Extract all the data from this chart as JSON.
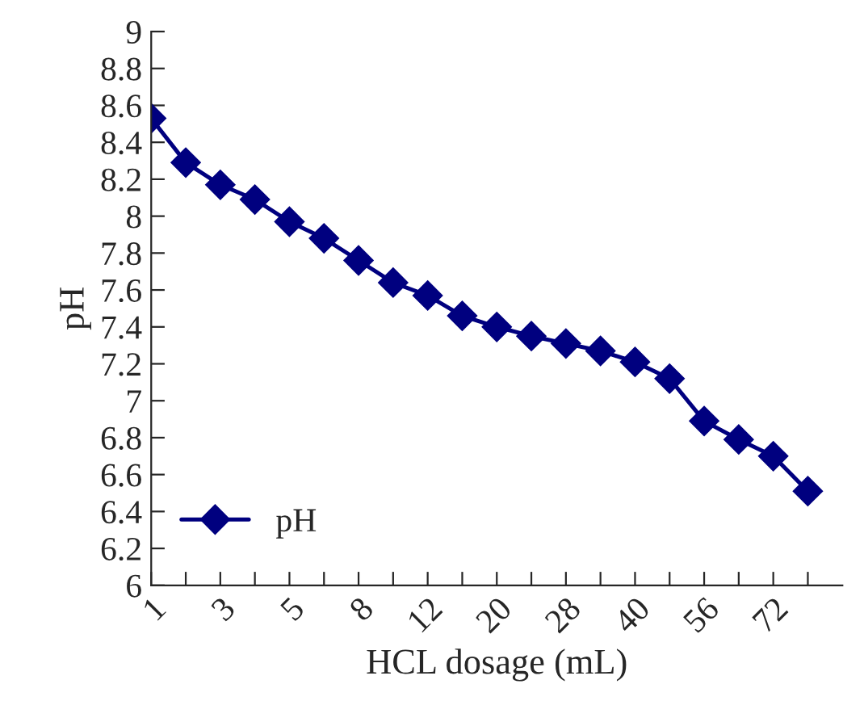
{
  "chart_data": {
    "type": "line",
    "xlabel": "HCL dosage (mL)",
    "ylabel": "pH",
    "categories": [
      "1",
      null,
      "3",
      null,
      "5",
      null,
      "8",
      null,
      "12",
      null,
      "20",
      null,
      "28",
      null,
      "40",
      null,
      "56",
      null,
      "72",
      null
    ],
    "series": [
      {
        "name": "pH",
        "color": "#00007f",
        "values": [
          8.53,
          8.29,
          8.17,
          8.09,
          7.97,
          7.88,
          7.76,
          7.64,
          7.57,
          7.46,
          7.4,
          7.35,
          7.31,
          7.27,
          7.21,
          7.12,
          6.89,
          6.79,
          6.7,
          6.51
        ]
      }
    ],
    "ylim": [
      6,
      9
    ],
    "yticks": [
      6,
      6.2,
      6.4,
      6.6,
      6.8,
      7,
      7.2,
      7.4,
      7.6,
      7.8,
      8,
      8.2,
      8.4,
      8.6,
      8.8,
      9
    ],
    "marker": "diamond",
    "line_style": "solid",
    "legend": "bottom left",
    "grid": false
  }
}
